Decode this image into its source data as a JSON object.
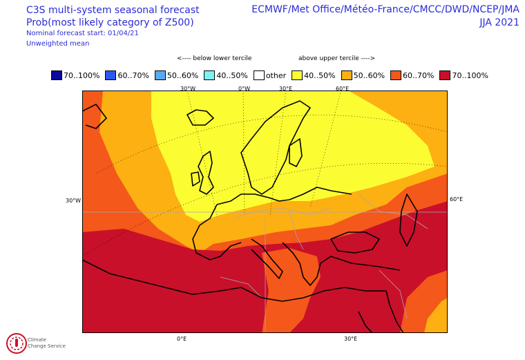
{
  "header": {
    "line1": "C3S multi-system seasonal forecast",
    "line2": "Prob(most likely category of Z500)",
    "line3": "Nominal forecast start: 01/04/21",
    "line4": "Unweighted mean",
    "systems": "ECMWF/Met Office/Météo-France/CMCC/DWD/NCEP/JMA",
    "season": "JJA 2021"
  },
  "tercile_labels": {
    "below": "<---- below lower tercile",
    "above": "above upper tercile ---->"
  },
  "legend": [
    {
      "label": "70..100%",
      "color": "#0a0a9c"
    },
    {
      "label": "60..70%",
      "color": "#2c58f0"
    },
    {
      "label": "50..60%",
      "color": "#5aa8f0"
    },
    {
      "label": "40..50%",
      "color": "#7ef2f2"
    },
    {
      "label": "other",
      "color": "#ffffff"
    },
    {
      "label": "40..50%",
      "color": "#fcfc33"
    },
    {
      "label": "50..60%",
      "color": "#fdb012"
    },
    {
      "label": "60..70%",
      "color": "#f4581a"
    },
    {
      "label": "70..100%",
      "color": "#c8102a"
    }
  ],
  "axis_labels": {
    "top": [
      "30°W",
      "0°W",
      "30°E",
      "60°E"
    ],
    "left": "30°W",
    "right": "60°E",
    "bottom": [
      "0°E",
      "30°E"
    ]
  },
  "logo": {
    "line1": "Climate",
    "line2": "Change Service"
  }
}
